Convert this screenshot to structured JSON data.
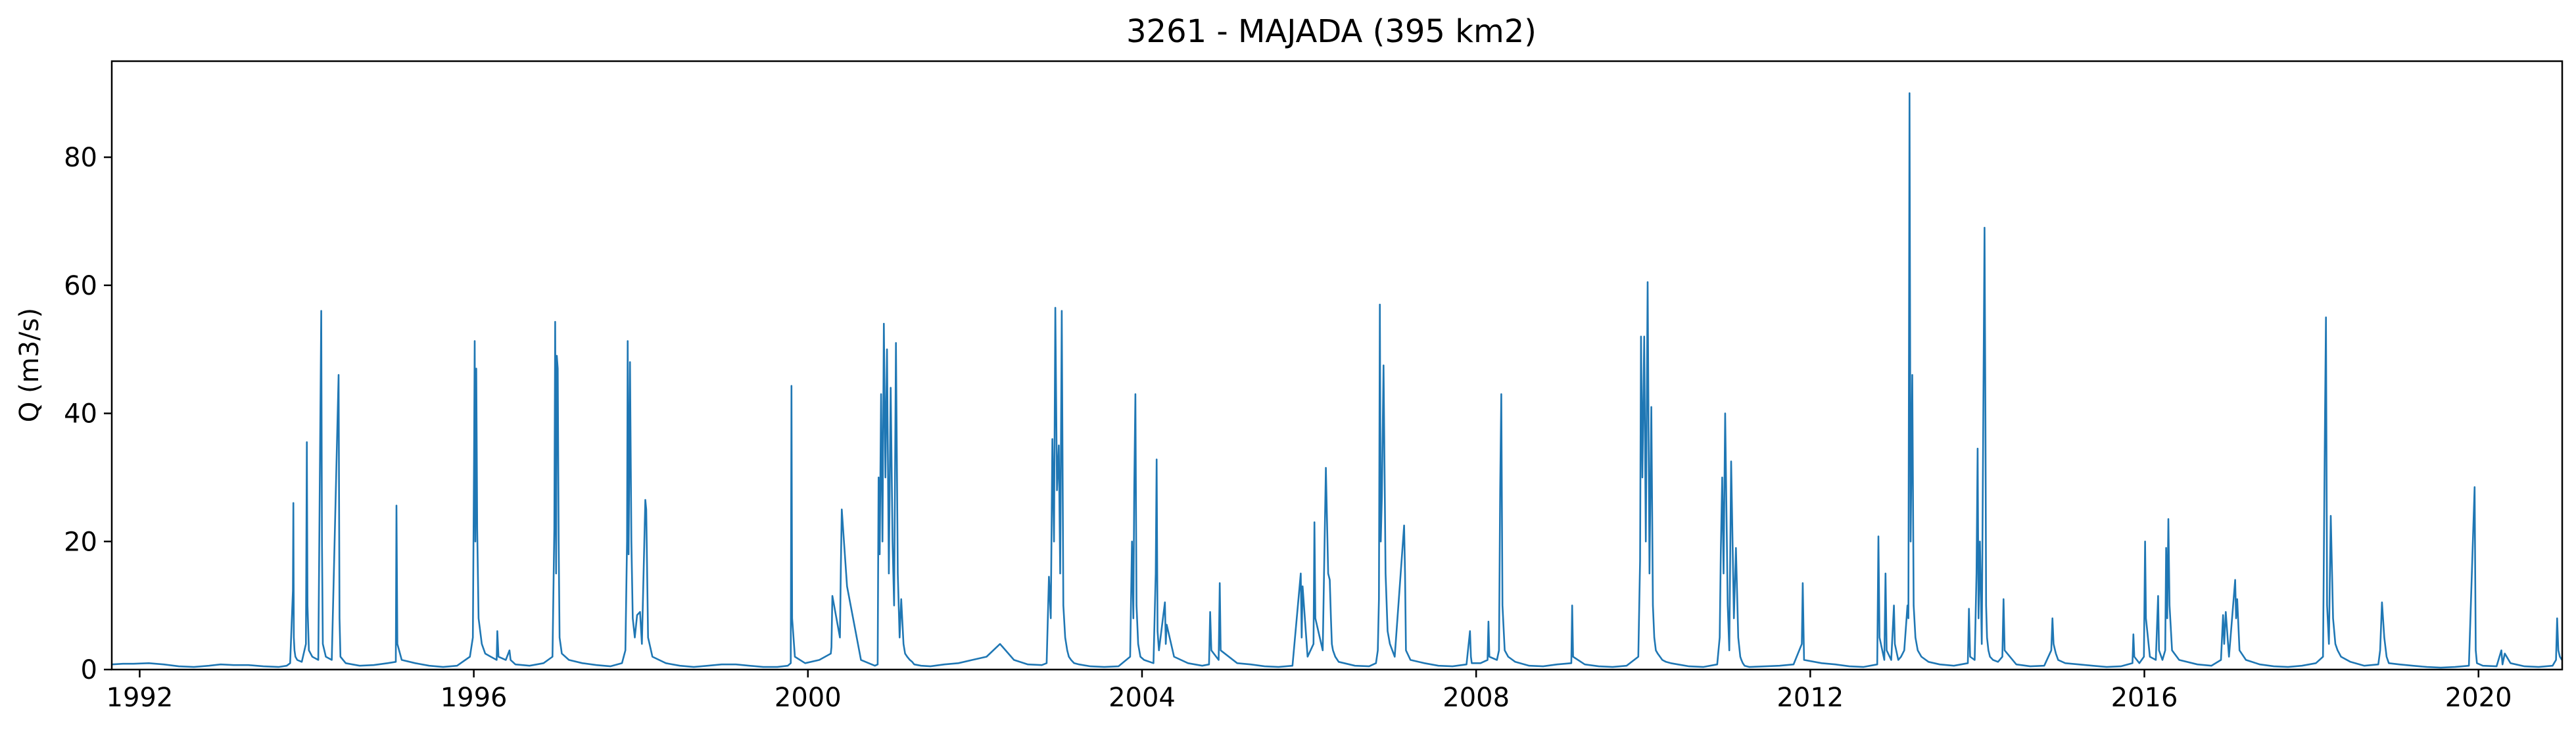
{
  "chart_data": {
    "type": "line",
    "title": "3261 - MAJADA (395 km2)",
    "xlabel": "",
    "ylabel": "Q (m3/s)",
    "xlim": [
      "1991-09-01",
      "2021-01-01"
    ],
    "ylim": [
      0,
      95
    ],
    "x_ticks": [
      1992,
      1996,
      2000,
      2004,
      2008,
      2012,
      2016,
      2020
    ],
    "y_ticks": [
      0,
      20,
      40,
      60,
      80
    ],
    "grid": false,
    "line_color": "#1f77b4",
    "series": [
      {
        "x": [
          "1991-09-01",
          "1991-10-20",
          "1991-12-05",
          "1992-02-10",
          "1992-04-15",
          "1992-06-20",
          "1992-08-25",
          "1992-10-30",
          "1992-12-20",
          "1993-02-15",
          "1993-04-20",
          "1993-06-25",
          "1993-08-30",
          "1993-10-05",
          "1993-10-20",
          "1993-11-01",
          "1993-11-03",
          "1993-11-05",
          "1993-11-08",
          "1993-11-12",
          "1993-11-20",
          "1993-12-10",
          "1993-12-28",
          "1994-01-01",
          "1994-01-04",
          "1994-01-10",
          "1994-01-25",
          "1994-02-20",
          "1994-03-05",
          "1994-03-08",
          "1994-03-12",
          "1994-03-25",
          "1994-04-20",
          "1994-05-20",
          "1994-05-24",
          "1994-05-28",
          "1994-06-20",
          "1994-08-20",
          "1994-10-20",
          "1994-12-20",
          "1995-01-25",
          "1995-01-28",
          "1995-02-01",
          "1995-02-20",
          "1995-04-20",
          "1995-06-20",
          "1995-08-20",
          "1995-10-20",
          "1995-12-15",
          "1995-12-28",
          "1996-01-02",
          "1996-01-05",
          "1996-01-08",
          "1996-01-12",
          "1996-01-16",
          "1996-01-22",
          "1996-02-05",
          "1996-02-20",
          "1996-03-15",
          "1996-04-10",
          "1996-04-13",
          "1996-04-18",
          "1996-05-20",
          "1996-06-05",
          "1996-06-10",
          "1996-07-01",
          "1996-09-01",
          "1996-11-01",
          "1996-12-10",
          "1996-12-18",
          "1996-12-22",
          "1996-12-26",
          "1996-12-29",
          "1997-01-02",
          "1997-01-06",
          "1997-01-10",
          "1997-01-20",
          "1997-02-20",
          "1997-04-20",
          "1997-06-20",
          "1997-08-20",
          "1997-10-10",
          "1997-10-25",
          "1997-11-01",
          "1997-11-04",
          "1997-11-08",
          "1997-11-14",
          "1997-11-20",
          "1997-11-26",
          "1997-12-05",
          "1997-12-15",
          "1997-12-28",
          "1998-01-05",
          "1998-01-20",
          "1998-01-24",
          "1998-02-01",
          "1998-02-20",
          "1998-04-20",
          "1998-06-20",
          "1998-08-20",
          "1998-10-20",
          "1998-12-20",
          "1999-02-20",
          "1999-04-20",
          "1999-06-20",
          "1999-08-20",
          "1999-10-05",
          "1999-10-18",
          "1999-10-21",
          "1999-10-24",
          "1999-11-05",
          "1999-12-20",
          "2000-02-20",
          "2000-04-10",
          "2000-04-13",
          "2000-04-17",
          "2000-05-20",
          "2000-05-24",
          "2000-05-28",
          "2000-06-20",
          "2000-08-20",
          "2000-10-20",
          "2000-11-01",
          "2000-11-05",
          "2000-11-10",
          "2000-11-16",
          "2000-11-22",
          "2000-11-28",
          "2000-12-05",
          "2000-12-12",
          "2000-12-20",
          "2000-12-28",
          "2001-01-05",
          "2001-01-12",
          "2001-01-20",
          "2001-01-28",
          "2001-02-05",
          "2001-02-12",
          "2001-02-22",
          "2001-03-01",
          "2001-03-10",
          "2001-03-22",
          "2001-04-01",
          "2001-04-10",
          "2001-05-10",
          "2001-06-20",
          "2001-08-20",
          "2001-10-20",
          "2001-12-20",
          "2002-02-20",
          "2002-04-20",
          "2002-06-20",
          "2002-08-20",
          "2002-10-20",
          "2002-11-10",
          "2002-11-20",
          "2002-11-28",
          "2002-12-05",
          "2002-12-12",
          "2002-12-18",
          "2002-12-25",
          "2003-01-02",
          "2003-01-08",
          "2003-01-15",
          "2003-01-22",
          "2003-01-30",
          "2003-02-08",
          "2003-02-15",
          "2003-02-25",
          "2003-03-10",
          "2003-04-01",
          "2003-05-20",
          "2003-07-20",
          "2003-09-20",
          "2003-11-10",
          "2003-11-18",
          "2003-11-24",
          "2003-11-28",
          "2003-12-03",
          "2003-12-08",
          "2003-12-15",
          "2003-12-25",
          "2004-01-10",
          "2004-02-20",
          "2004-03-01",
          "2004-03-05",
          "2004-03-09",
          "2004-03-15",
          "2004-04-10",
          "2004-04-14",
          "2004-04-18",
          "2004-05-20",
          "2004-07-20",
          "2004-09-20",
          "2004-10-20",
          "2004-10-25",
          "2004-10-30",
          "2004-12-01",
          "2004-12-06",
          "2004-12-10",
          "2005-02-20",
          "2005-04-20",
          "2005-06-20",
          "2005-08-20",
          "2005-10-20",
          "2005-11-25",
          "2005-11-29",
          "2005-12-03",
          "2005-12-25",
          "2006-01-20",
          "2006-01-24",
          "2006-01-28",
          "2006-03-01",
          "2006-03-15",
          "2006-03-25",
          "2006-04-01",
          "2006-04-06",
          "2006-04-10",
          "2006-04-15",
          "2006-04-25",
          "2006-05-10",
          "2006-07-20",
          "2006-09-20",
          "2006-10-20",
          "2006-10-28",
          "2006-11-02",
          "2006-11-06",
          "2006-11-10",
          "2006-11-15",
          "2006-11-22",
          "2006-12-01",
          "2006-12-10",
          "2006-12-20",
          "2007-01-10",
          "2007-02-20",
          "2007-02-24",
          "2007-02-28",
          "2007-03-20",
          "2007-05-20",
          "2007-07-20",
          "2007-09-20",
          "2007-11-20",
          "2007-12-05",
          "2007-12-09",
          "2007-12-13",
          "2008-01-20",
          "2008-02-20",
          "2008-02-24",
          "2008-02-28",
          "2008-04-01",
          "2008-04-10",
          "2008-04-15",
          "2008-04-20",
          "2008-04-25",
          "2008-05-05",
          "2008-05-20",
          "2008-06-20",
          "2008-08-20",
          "2008-10-20",
          "2008-12-20",
          "2009-02-20",
          "2009-02-24",
          "2009-02-28",
          "2009-04-20",
          "2009-06-20",
          "2009-08-20",
          "2009-10-20",
          "2009-12-10",
          "2009-12-18",
          "2009-12-22",
          "2009-12-28",
          "2010-01-05",
          "2010-01-12",
          "2010-01-20",
          "2010-01-28",
          "2010-02-05",
          "2010-02-12",
          "2010-02-18",
          "2010-02-25",
          "2010-03-05",
          "2010-03-15",
          "2010-03-25",
          "2010-04-10",
          "2010-05-01",
          "2010-06-01",
          "2010-07-20",
          "2010-09-20",
          "2010-11-20",
          "2010-12-01",
          "2010-12-06",
          "2010-12-12",
          "2010-12-18",
          "2010-12-25",
          "2011-01-05",
          "2011-01-12",
          "2011-01-20",
          "2011-02-01",
          "2011-02-10",
          "2011-02-20",
          "2011-03-01",
          "2011-03-06",
          "2011-03-12",
          "2011-03-20",
          "2011-04-10",
          "2011-06-20",
          "2011-08-20",
          "2011-10-20",
          "2011-11-25",
          "2011-11-29",
          "2011-12-05",
          "2012-02-20",
          "2012-04-20",
          "2012-06-20",
          "2012-08-20",
          "2012-10-20",
          "2012-10-25",
          "2012-10-30",
          "2012-11-20",
          "2012-11-25",
          "2012-11-30",
          "2012-12-20",
          "2013-01-01",
          "2013-01-05",
          "2013-01-20",
          "2013-02-01",
          "2013-02-15",
          "2013-03-01",
          "2013-03-05",
          "2013-03-10",
          "2013-03-15",
          "2013-03-22",
          "2013-03-28",
          "2013-04-05",
          "2013-04-15",
          "2013-05-01",
          "2013-06-01",
          "2013-07-20",
          "2013-09-20",
          "2013-11-20",
          "2013-11-25",
          "2013-11-30",
          "2013-12-20",
          "2013-12-28",
          "2014-01-02",
          "2014-01-06",
          "2014-01-12",
          "2014-01-20",
          "2014-02-01",
          "2014-02-05",
          "2014-02-08",
          "2014-02-12",
          "2014-02-18",
          "2014-02-25",
          "2014-03-10",
          "2014-04-01",
          "2014-04-20",
          "2014-04-25",
          "2014-04-30",
          "2014-06-20",
          "2014-08-20",
          "2014-10-20",
          "2014-11-20",
          "2014-11-25",
          "2014-11-30",
          "2014-12-10",
          "2014-12-20",
          "2015-01-20",
          "2015-03-20",
          "2015-05-20",
          "2015-07-20",
          "2015-09-20",
          "2015-11-10",
          "2015-11-14",
          "2015-11-18",
          "2015-12-10",
          "2015-12-30",
          "2016-01-04",
          "2016-01-08",
          "2016-01-25",
          "2016-02-20",
          "2016-03-01",
          "2016-03-05",
          "2016-03-20",
          "2016-04-01",
          "2016-04-05",
          "2016-04-10",
          "2016-04-15",
          "2016-04-20",
          "2016-05-01",
          "2016-06-01",
          "2016-08-20",
          "2016-10-20",
          "2016-12-01",
          "2016-12-10",
          "2016-12-15",
          "2016-12-22",
          "2017-01-05",
          "2017-02-01",
          "2017-02-05",
          "2017-02-10",
          "2017-02-20",
          "2017-03-20",
          "2017-05-20",
          "2017-07-20",
          "2017-09-20",
          "2017-11-20",
          "2018-01-20",
          "2018-02-20",
          "2018-03-01",
          "2018-03-05",
          "2018-03-10",
          "2018-03-18",
          "2018-03-26",
          "2018-04-05",
          "2018-04-15",
          "2018-04-25",
          "2018-05-10",
          "2018-06-20",
          "2018-08-20",
          "2018-10-20",
          "2018-10-28",
          "2018-11-05",
          "2018-11-15",
          "2018-11-25",
          "2018-12-05",
          "2019-01-20",
          "2019-03-20",
          "2019-05-20",
          "2019-07-20",
          "2019-09-20",
          "2019-11-20",
          "2019-12-15",
          "2019-12-20",
          "2019-12-25",
          "2020-01-20",
          "2020-03-20",
          "2020-04-10",
          "2020-04-15",
          "2020-04-25",
          "2020-05-20",
          "2020-07-20",
          "2020-09-20",
          "2020-11-20",
          "2020-12-05",
          "2020-12-10",
          "2020-12-15",
          "2020-12-22",
          "2020-12-31"
        ],
        "y": [
          0.8,
          0.9,
          0.9,
          1.0,
          0.8,
          0.5,
          0.4,
          0.6,
          0.8,
          0.7,
          0.7,
          0.5,
          0.4,
          0.6,
          1.0,
          12.3,
          26.0,
          5.0,
          3.0,
          2.0,
          1.5,
          1.2,
          4.0,
          35.5,
          10.0,
          3.0,
          2.0,
          1.5,
          56.0,
          20.0,
          4.0,
          2.0,
          1.5,
          46.0,
          8.0,
          2.0,
          1.0,
          0.6,
          0.7,
          1.0,
          1.2,
          25.6,
          4.0,
          1.5,
          1.0,
          0.6,
          0.4,
          0.6,
          2.0,
          5.0,
          33.0,
          51.3,
          20.0,
          47.0,
          22.0,
          8.0,
          4.0,
          2.5,
          2.0,
          1.5,
          6.0,
          2.0,
          1.5,
          3.0,
          1.5,
          0.8,
          0.6,
          1.0,
          2.0,
          22.0,
          54.3,
          15.0,
          49.0,
          47.0,
          20.0,
          5.0,
          2.5,
          1.5,
          1.0,
          0.7,
          0.5,
          1.0,
          3.0,
          20.0,
          51.3,
          18.0,
          48.0,
          20.0,
          8.0,
          5.0,
          8.5,
          9.0,
          4.0,
          26.5,
          25.0,
          5.0,
          2.0,
          1.0,
          0.6,
          0.4,
          0.6,
          0.8,
          0.8,
          0.6,
          0.4,
          0.4,
          0.6,
          1.0,
          44.3,
          8.0,
          2.0,
          1.0,
          1.5,
          2.5,
          3.5,
          11.5,
          5.0,
          16.0,
          25.0,
          13.0,
          1.5,
          0.6,
          0.8,
          30.0,
          18.0,
          43.0,
          20.0,
          54.0,
          30.0,
          50.0,
          15.0,
          44.0,
          20.0,
          10.0,
          51.0,
          15.0,
          5.0,
          11.0,
          4.0,
          2.5,
          2.0,
          1.5,
          1.2,
          0.8,
          0.6,
          0.5,
          0.8,
          1.0,
          1.5,
          2.0,
          4.0,
          1.5,
          0.8,
          0.7,
          1.0,
          14.5,
          8.0,
          36.0,
          20.0,
          56.5,
          28.0,
          35.0,
          15.0,
          56.0,
          10.0,
          5.0,
          3.0,
          2.0,
          1.5,
          1.0,
          0.8,
          0.5,
          0.4,
          0.5,
          2.0,
          20.0,
          8.0,
          28.0,
          43.0,
          10.0,
          4.0,
          2.0,
          1.5,
          1.0,
          15.0,
          32.8,
          6.0,
          3.0,
          10.5,
          4.0,
          7.0,
          2.0,
          1.0,
          0.6,
          0.8,
          9.0,
          3.0,
          1.5,
          13.5,
          3.0,
          1.0,
          0.8,
          0.5,
          0.4,
          0.6,
          15.0,
          5.0,
          13.0,
          2.0,
          4.0,
          23.0,
          8.0,
          3.0,
          31.5,
          15.0,
          14.0,
          8.0,
          4.0,
          3.0,
          2.0,
          1.2,
          0.6,
          0.5,
          1.0,
          3.0,
          11.0,
          57.0,
          20.0,
          27.0,
          47.5,
          15.0,
          6.0,
          4.0,
          2.0,
          22.5,
          15.0,
          3.0,
          1.5,
          1.0,
          0.6,
          0.5,
          0.8,
          6.0,
          2.0,
          1.0,
          1.0,
          1.5,
          7.5,
          2.0,
          1.5,
          3.0,
          28.0,
          43.0,
          10.0,
          3.0,
          2.0,
          1.2,
          0.6,
          0.5,
          0.8,
          1.0,
          10.0,
          2.0,
          0.8,
          0.5,
          0.4,
          0.6,
          2.0,
          17.0,
          52.0,
          30.0,
          52.0,
          20.0,
          60.5,
          15.0,
          41.0,
          10.0,
          5.0,
          3.0,
          2.5,
          2.0,
          1.5,
          1.2,
          1.0,
          0.8,
          0.5,
          0.4,
          0.8,
          5.0,
          18.5,
          30.0,
          15.0,
          40.0,
          10.0,
          3.0,
          32.5,
          8.0,
          19.0,
          5.0,
          2.0,
          1.5,
          1.0,
          0.6,
          0.4,
          0.5,
          0.6,
          0.8,
          4.0,
          13.5,
          1.5,
          1.0,
          0.8,
          0.5,
          0.4,
          0.8,
          20.8,
          5.0,
          1.5,
          15.0,
          3.0,
          1.5,
          10.0,
          4.0,
          1.5,
          2.0,
          3.0,
          10.0,
          8.0,
          90.0,
          20.0,
          46.0,
          10.0,
          5.0,
          3.0,
          2.0,
          1.2,
          0.8,
          0.6,
          1.0,
          9.5,
          2.0,
          1.5,
          15.0,
          34.5,
          8.0,
          20.0,
          4.0,
          69.0,
          38.5,
          10.0,
          5.0,
          3.0,
          2.0,
          1.5,
          1.2,
          2.0,
          11.0,
          3.0,
          0.8,
          0.5,
          0.6,
          3.0,
          8.0,
          4.0,
          2.5,
          1.5,
          1.0,
          0.8,
          0.6,
          0.4,
          0.5,
          1.0,
          5.5,
          2.0,
          1.0,
          2.0,
          20.0,
          8.0,
          2.0,
          1.5,
          11.5,
          3.0,
          1.5,
          3.0,
          19.0,
          8.0,
          23.5,
          10.0,
          3.0,
          1.5,
          0.8,
          0.6,
          1.5,
          8.5,
          4.0,
          9.0,
          2.0,
          14.0,
          8.0,
          11.0,
          3.0,
          1.5,
          0.8,
          0.5,
          0.4,
          0.6,
          1.0,
          2.0,
          40.0,
          55.0,
          10.0,
          4.0,
          24.0,
          8.0,
          4.0,
          3.0,
          2.0,
          1.2,
          0.6,
          0.8,
          3.0,
          10.5,
          5.0,
          2.0,
          1.0,
          0.8,
          0.6,
          0.4,
          0.3,
          0.4,
          0.6,
          28.5,
          3.0,
          1.0,
          0.6,
          0.5,
          3.0,
          0.8,
          2.5,
          1.0,
          0.5,
          0.4,
          0.6,
          1.5,
          8.0,
          3.0,
          2.0,
          1.5
        ]
      }
    ]
  }
}
